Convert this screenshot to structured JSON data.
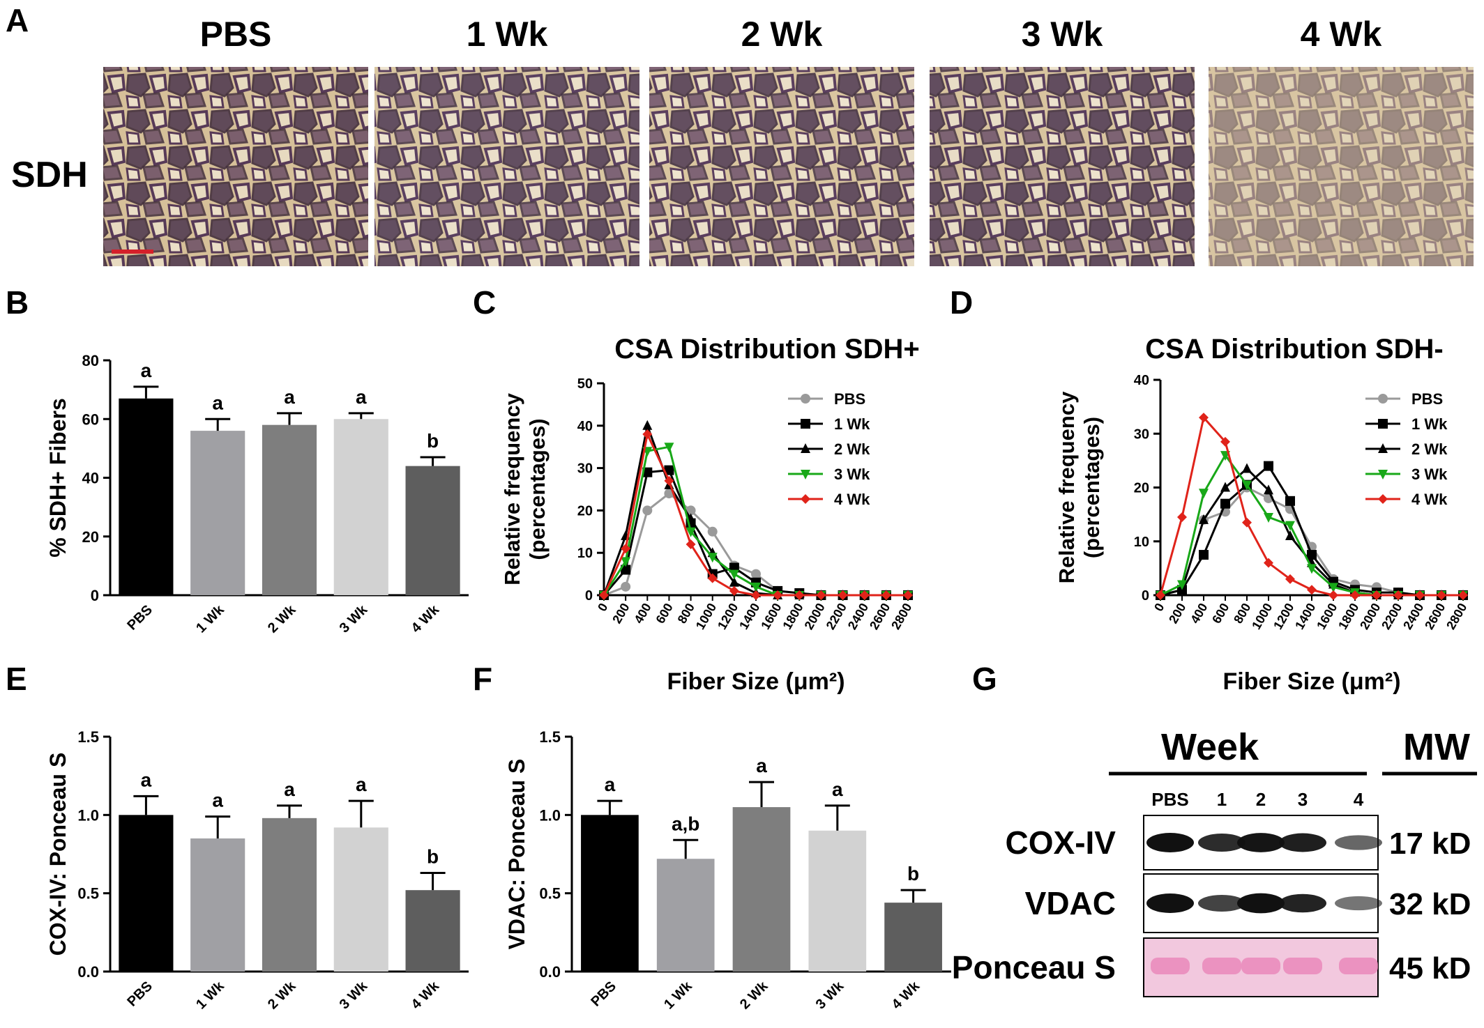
{
  "panel_letters": [
    "A",
    "B",
    "C",
    "D",
    "E",
    "F",
    "G"
  ],
  "panel_a": {
    "row_label": "SDH",
    "columns": [
      "PBS",
      "1 Wk",
      "2 Wk",
      "3 Wk",
      "4 Wk"
    ],
    "stain_colors": {
      "background": "#d8c39c",
      "fiber_dark": "#4b2e53",
      "fiber_mid": "#7d5c73",
      "scale_bar": "#d4202a"
    }
  },
  "panel_g": {
    "week_label": "Week",
    "mw_label": "MW",
    "lanes": [
      "PBS",
      "1",
      "2",
      "3",
      "4"
    ],
    "rows": [
      {
        "label": "COX-IV",
        "mw": "17 kD",
        "intensity": [
          1.0,
          0.85,
          0.98,
          0.92,
          0.52
        ]
      },
      {
        "label": "VDAC",
        "mw": "32 kD",
        "intensity": [
          1.0,
          0.72,
          1.05,
          0.9,
          0.44
        ]
      },
      {
        "label": "Ponceau  S",
        "mw": "45 kD",
        "intensity": [
          1,
          1,
          1,
          1,
          1
        ]
      }
    ],
    "ponceau_color": "#e884b8"
  },
  "chart_data": [
    {
      "id": "B",
      "type": "bar",
      "categories": [
        "PBS",
        "1 Wk",
        "2 Wk",
        "3 Wk",
        "4 Wk"
      ],
      "values": [
        67,
        56,
        58,
        60,
        44
      ],
      "errors": [
        4,
        4,
        4,
        2,
        3
      ],
      "letters": [
        "a",
        "a",
        "a",
        "a",
        "b"
      ],
      "colors": [
        "#000000",
        "#a0a0a4",
        "#7e7e7e",
        "#d2d2d2",
        "#5e5e5e"
      ],
      "ylabel": "% SDH+ Fibers",
      "ylim": [
        0,
        80
      ],
      "yticks": [
        "0",
        "20",
        "40",
        "60",
        "80"
      ]
    },
    {
      "id": "C",
      "type": "line",
      "title": "CSA Distribution SDH+",
      "xlabel": "Fiber Size (μm²)",
      "ylabel": [
        "Relative frequency",
        "(percentages)"
      ],
      "x": [
        0,
        200,
        400,
        600,
        800,
        1000,
        1200,
        1400,
        1600,
        1800,
        2000,
        2200,
        2400,
        2600,
        2800
      ],
      "xticks": [
        "0",
        "200",
        "400",
        "600",
        "800",
        "1000",
        "1200",
        "1400",
        "1600",
        "1800",
        "2000",
        "2200",
        "2400",
        "2600",
        "2800"
      ],
      "ylim": [
        0,
        50
      ],
      "yticks": [
        "0",
        "10",
        "20",
        "30",
        "40",
        "50"
      ],
      "legend_position": "top-right",
      "series": [
        {
          "name": "PBS",
          "color": "#9a9a9a",
          "marker": "circle",
          "values": [
            0,
            2,
            20,
            24,
            20,
            15,
            7,
            5,
            1,
            0.5,
            0,
            0,
            0,
            0,
            0
          ]
        },
        {
          "name": "1 Wk",
          "color": "#000000",
          "marker": "square",
          "values": [
            0,
            6,
            29,
            29.5,
            17,
            5,
            6.5,
            3,
            1,
            0.5,
            0,
            0,
            0,
            0,
            0
          ]
        },
        {
          "name": "2 Wk",
          "color": "#000000",
          "marker": "triangle-up",
          "values": [
            0,
            14,
            40,
            26,
            18,
            10,
            3,
            0.5,
            0,
            0,
            0,
            0,
            0,
            0,
            0
          ]
        },
        {
          "name": "3 Wk",
          "color": "#18a818",
          "marker": "triangle-down",
          "values": [
            0,
            8,
            34,
            35,
            15,
            9,
            5,
            2,
            0,
            0,
            0,
            0,
            0,
            0,
            0
          ]
        },
        {
          "name": "4 Wk",
          "color": "#e0231a",
          "marker": "diamond",
          "values": [
            0,
            11,
            38,
            27,
            12,
            4,
            1,
            0,
            0,
            0,
            0,
            0,
            0,
            0,
            0
          ]
        }
      ]
    },
    {
      "id": "D",
      "type": "line",
      "title": "CSA Distribution SDH-",
      "xlabel": "Fiber Size (μm²)",
      "ylabel": [
        "Relative frequency",
        "(percentages)"
      ],
      "x": [
        0,
        200,
        400,
        600,
        800,
        1000,
        1200,
        1400,
        1600,
        1800,
        2000,
        2200,
        2400,
        2600,
        2800
      ],
      "xticks": [
        "0",
        "200",
        "400",
        "600",
        "800",
        "1000",
        "1200",
        "1400",
        "1600",
        "1800",
        "2000",
        "2200",
        "2400",
        "2600",
        "2800"
      ],
      "ylim": [
        0,
        40
      ],
      "yticks": [
        "0",
        "10",
        "20",
        "30",
        "40"
      ],
      "legend_position": "top-right",
      "series": [
        {
          "name": "PBS",
          "color": "#9a9a9a",
          "marker": "circle",
          "values": [
            0,
            1,
            14,
            15.5,
            20,
            18,
            16,
            9,
            3,
            2,
            1.5,
            0.5,
            0,
            0,
            0
          ]
        },
        {
          "name": "1 Wk",
          "color": "#000000",
          "marker": "square",
          "values": [
            0,
            1,
            7.5,
            17,
            20.5,
            24,
            17.5,
            7.5,
            2.5,
            1,
            0.5,
            0.5,
            0,
            0,
            0
          ]
        },
        {
          "name": "2 Wk",
          "color": "#000000",
          "marker": "triangle-up",
          "values": [
            0,
            1,
            14,
            20,
            23.5,
            19.5,
            11,
            6,
            2,
            0.5,
            0,
            0,
            0,
            0,
            0
          ]
        },
        {
          "name": "3 Wk",
          "color": "#18a818",
          "marker": "triangle-down",
          "values": [
            0,
            2,
            19,
            26,
            20.5,
            14.5,
            13,
            5,
            1.5,
            0.5,
            0,
            0,
            0,
            0,
            0
          ]
        },
        {
          "name": "4 Wk",
          "color": "#e0231a",
          "marker": "diamond",
          "values": [
            0,
            14.5,
            33,
            28.5,
            13.5,
            6,
            3,
            1,
            0,
            0,
            0,
            0,
            0,
            0,
            0
          ]
        }
      ]
    },
    {
      "id": "E",
      "type": "bar",
      "categories": [
        "PBS",
        "1 Wk",
        "2 Wk",
        "3 Wk",
        "4 Wk"
      ],
      "values": [
        1.0,
        0.85,
        0.98,
        0.92,
        0.52
      ],
      "errors": [
        0.12,
        0.14,
        0.08,
        0.17,
        0.11
      ],
      "letters": [
        "a",
        "a",
        "a",
        "a",
        "b"
      ],
      "colors": [
        "#000000",
        "#a0a0a4",
        "#7e7e7e",
        "#d2d2d2",
        "#5e5e5e"
      ],
      "ylabel": "COX-IV: Ponceau S",
      "ylim": [
        0,
        1.5
      ],
      "yticks": [
        "0.0",
        "0.5",
        "1.0",
        "1.5"
      ]
    },
    {
      "id": "F",
      "type": "bar",
      "categories": [
        "PBS",
        "1 Wk",
        "2 Wk",
        "3 Wk",
        "4 Wk"
      ],
      "values": [
        1.0,
        0.72,
        1.05,
        0.9,
        0.44
      ],
      "errors": [
        0.09,
        0.12,
        0.16,
        0.16,
        0.08
      ],
      "letters": [
        "a",
        "a,b",
        "a",
        "a",
        "b"
      ],
      "colors": [
        "#000000",
        "#a0a0a4",
        "#7e7e7e",
        "#d2d2d2",
        "#5e5e5e"
      ],
      "ylabel": "VDAC: Ponceau S",
      "ylim": [
        0,
        1.5
      ],
      "yticks": [
        "0.0",
        "0.5",
        "1.0",
        "1.5"
      ]
    }
  ]
}
